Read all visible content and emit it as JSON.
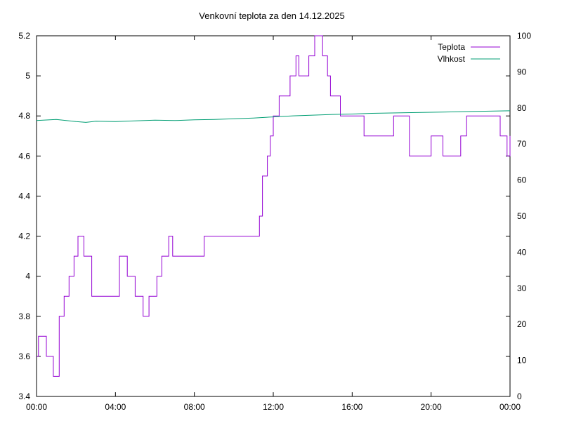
{
  "chart_data": {
    "type": "line",
    "title": "Venkovní teplota za den 14.12.2025",
    "xlabel": "",
    "ylabel": "",
    "y2label": "",
    "x_ticks": [
      "00:00",
      "04:00",
      "08:00",
      "12:00",
      "16:00",
      "20:00",
      "00:00"
    ],
    "x_range_hours": [
      0,
      24
    ],
    "y_range": [
      3.4,
      5.2
    ],
    "y_ticks": [
      "3.4",
      "3.6",
      "3.8",
      "4",
      "4.2",
      "4.4",
      "4.6",
      "4.8",
      "5",
      "5.2"
    ],
    "y2_range": [
      0,
      100
    ],
    "y2_ticks": [
      "0",
      "10",
      "20",
      "30",
      "40",
      "50",
      "60",
      "70",
      "80",
      "90",
      "100"
    ],
    "grid": false,
    "legend_position": "top-right",
    "series": [
      {
        "name": "Teplota",
        "axis": "y",
        "color": "#9400d3",
        "x": [
          0,
          0.1,
          0.4,
          0.5,
          0.65,
          0.85,
          1.15,
          1.4,
          1.65,
          1.9,
          2.1,
          2.4,
          2.8,
          4.2,
          4.6,
          5.0,
          5.4,
          5.7,
          5.85,
          6.1,
          6.35,
          6.7,
          6.9,
          7.4,
          8.5,
          8.9,
          9.05,
          10.0,
          11.3,
          11.45,
          11.7,
          11.85,
          12.0,
          12.3,
          12.6,
          12.85,
          13.15,
          13.3,
          13.5,
          13.8,
          14.1,
          14.3,
          14.5,
          14.75,
          14.9,
          15.15,
          15.4,
          15.75,
          16.0,
          16.2,
          16.6,
          16.9,
          17.5,
          18.1,
          18.9,
          19.4,
          20.0,
          20.6,
          21.0,
          21.5,
          21.8,
          22.1,
          22.5,
          23.1,
          23.5,
          23.85,
          24.0
        ],
        "y": [
          3.6,
          3.7,
          3.7,
          3.6,
          3.6,
          3.5,
          3.8,
          3.9,
          4.0,
          4.1,
          4.2,
          4.1,
          3.9,
          4.1,
          4.0,
          3.9,
          3.8,
          3.9,
          3.9,
          4.0,
          4.1,
          4.2,
          4.1,
          4.1,
          4.2,
          4.2,
          4.2,
          4.2,
          4.3,
          4.5,
          4.6,
          4.7,
          4.8,
          4.9,
          4.9,
          5.0,
          5.1,
          5.0,
          5.0,
          5.1,
          5.2,
          5.2,
          5.1,
          5.0,
          4.9,
          4.9,
          4.8,
          4.8,
          4.8,
          4.8,
          4.7,
          4.7,
          4.7,
          4.8,
          4.6,
          4.6,
          4.7,
          4.6,
          4.6,
          4.7,
          4.8,
          4.8,
          4.8,
          4.8,
          4.7,
          4.6,
          4.7
        ]
      },
      {
        "name": "Vlhkost",
        "axis": "y2",
        "color": "#009e73",
        "x": [
          0,
          1,
          2,
          2.5,
          3,
          4,
          5,
          6,
          7,
          8,
          9,
          10,
          11,
          12,
          13,
          14,
          15,
          16,
          17,
          18,
          19,
          20,
          21,
          22,
          23,
          24
        ],
        "y": [
          76.5,
          76.8,
          76.2,
          76.0,
          76.3,
          76.2,
          76.4,
          76.6,
          76.5,
          76.7,
          76.8,
          77.0,
          77.2,
          77.5,
          77.8,
          78.0,
          78.2,
          78.3,
          78.5,
          78.6,
          78.7,
          78.8,
          78.9,
          79.0,
          79.1,
          79.2
        ]
      }
    ]
  }
}
